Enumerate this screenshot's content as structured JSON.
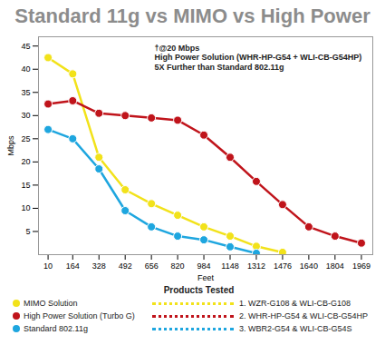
{
  "chart_data": {
    "type": "line",
    "title": "Standard 11g vs MIMO vs High Power",
    "x_label": "Feet",
    "y_label": "Mbps",
    "x": [
      10,
      164,
      328,
      492,
      656,
      820,
      984,
      1148,
      1312,
      1476,
      1640,
      1804,
      1969
    ],
    "xlim": [
      -50,
      2040
    ],
    "xticks": [
      10,
      164,
      328,
      492,
      656,
      820,
      984,
      1148,
      1312,
      1476,
      1640,
      1804,
      1969
    ],
    "ylim": [
      0,
      47
    ],
    "yticks": [
      5,
      10,
      15,
      20,
      25,
      30,
      35,
      40,
      45
    ],
    "grid": false,
    "legend_title": "Products Tested",
    "annotation": [
      "†@20 Mbps",
      "High Power Solution (WHR-HP-G54 + WLI-CB-G54HP)",
      "5X Further than Standard 802.11g"
    ],
    "series": [
      {
        "name": "MIMO Solution",
        "product": "1. WZR-G108 & WLI-CB-G108",
        "color": "#f2e21a",
        "marker": "circle",
        "values": [
          42.5,
          39,
          21,
          14,
          11,
          8.5,
          6,
          4,
          1.8,
          0.5,
          null,
          null,
          null
        ]
      },
      {
        "name": "High Power Solution (Turbo G)",
        "product": "2. WHR-HP-G54 & WLI-CB-G54HP",
        "color": "#c0141b",
        "marker": "circle",
        "values": [
          32.5,
          33.2,
          30.5,
          30,
          29.5,
          29,
          25.8,
          21,
          15.8,
          10.8,
          6,
          4,
          2.5
        ]
      },
      {
        "name": "Standard 802.11g",
        "product": "3. WBR2-G54 & WLI-CB-G54S",
        "color": "#1ea6df",
        "marker": "circle",
        "values": [
          27,
          25,
          18.5,
          9.5,
          6,
          4,
          3.2,
          1.7,
          0.3,
          null,
          null,
          null,
          null
        ]
      }
    ]
  }
}
